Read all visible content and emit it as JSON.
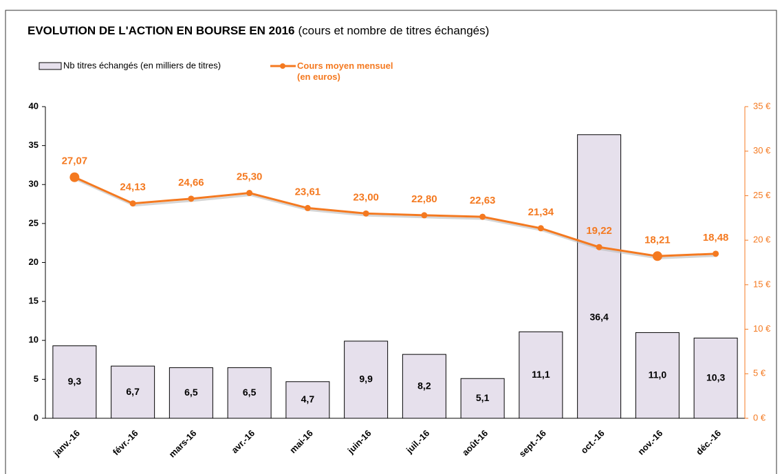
{
  "chart_data": {
    "type": "bar+line",
    "title": "EVOLUTION DE L'ACTION EN BOURSE EN 2016",
    "subtitle": "(cours et nombre de titres échangés)",
    "categories": [
      "janv.-16",
      "févr.-16",
      "mars-16",
      "avr.-16",
      "mai-16",
      "juin-16",
      "juil.-16",
      "août-16",
      "sept.-16",
      "oct.-16",
      "nov.-16",
      "déc.-16"
    ],
    "series": [
      {
        "name": "Nb titres échangés (en milliers de titres)",
        "type": "bar",
        "color": "#e6e0ec",
        "values": [
          9.3,
          6.7,
          6.5,
          6.5,
          4.7,
          9.9,
          8.2,
          5.1,
          11.1,
          36.4,
          11.0,
          10.3
        ],
        "value_labels": [
          "9,3",
          "6,7",
          "6,5",
          "6,5",
          "4,7",
          "9,9",
          "8,2",
          "5,1",
          "11,1",
          "36,4",
          "11,0",
          "10,3"
        ]
      },
      {
        "name": "Cours moyen mensuel\n(en euros)",
        "type": "line",
        "axis": "y2",
        "color": "#f47920",
        "values": [
          27.07,
          24.13,
          24.66,
          25.3,
          23.61,
          23.0,
          22.8,
          22.63,
          21.34,
          19.22,
          18.21,
          18.48
        ],
        "value_labels": [
          "27,07",
          "24,13",
          "24,66",
          "25,30",
          "23,61",
          "23,00",
          "22,80",
          "22,63",
          "21,34",
          "19,22",
          "18,21",
          "18,48"
        ]
      }
    ],
    "ylim": [
      0,
      40
    ],
    "yticks": [
      0,
      5,
      10,
      15,
      20,
      25,
      30,
      35,
      40
    ],
    "y2lim": [
      0,
      35
    ],
    "y2ticks": [
      {
        "value": 0,
        "label": "0 €"
      },
      {
        "value": 5,
        "label": "5 €"
      },
      {
        "value": 10,
        "label": "10 €"
      },
      {
        "value": 15,
        "label": "15 €"
      },
      {
        "value": 20,
        "label": "20 €"
      },
      {
        "value": 25,
        "label": "25 €"
      },
      {
        "value": 30,
        "label": "30 €"
      },
      {
        "value": 35,
        "label": "35 €"
      }
    ],
    "grid": false
  }
}
